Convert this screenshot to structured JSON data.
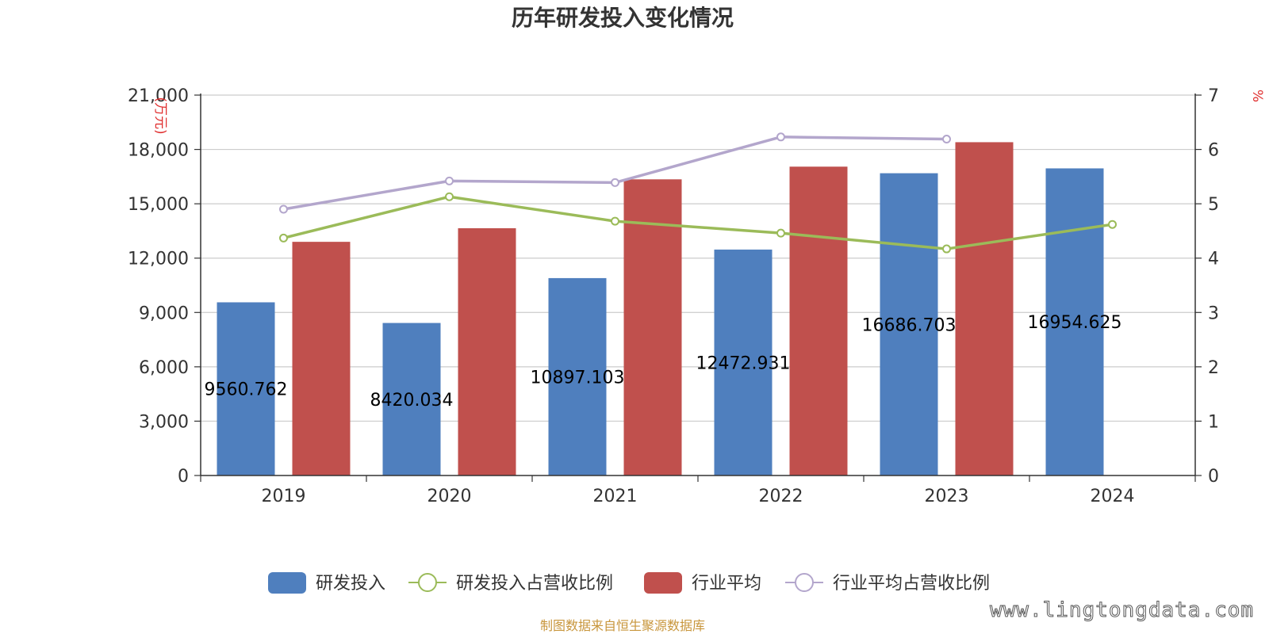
{
  "chart_data": {
    "type": "bar",
    "title": "历年研发投入变化情况",
    "categories": [
      "2019",
      "2020",
      "2021",
      "2022",
      "2023",
      "2024"
    ],
    "y_left": {
      "unit_label": "万元",
      "ylim": [
        0,
        21000
      ],
      "ticks": [
        0,
        3000,
        6000,
        9000,
        12000,
        15000,
        18000,
        21000
      ],
      "tick_labels": [
        "0",
        "3,000",
        "6,000",
        "9,000",
        "12,000",
        "15,000",
        "18,000",
        "21,000"
      ]
    },
    "y_right": {
      "unit_label": "%",
      "ylim": [
        0,
        7
      ],
      "ticks": [
        0,
        1,
        2,
        3,
        4,
        5,
        6,
        7
      ],
      "tick_labels": [
        "0",
        "1",
        "2",
        "3",
        "4",
        "5",
        "6",
        "7"
      ]
    },
    "grid": true,
    "legend_position": "bottom",
    "series": [
      {
        "name": "研发投入",
        "kind": "bar",
        "axis": "left",
        "color": "#4f7fbe",
        "values": [
          9560.762,
          8420.034,
          10897.103,
          12472.931,
          16686.703,
          16954.625
        ],
        "data_labels": [
          "9560.762",
          "8420.034",
          "10897.103",
          "12472.931",
          "16686.703",
          "16954.625"
        ]
      },
      {
        "name": "研发投入占营收比例",
        "kind": "line",
        "axis": "right",
        "color": "#9bbb59",
        "values": [
          4.37,
          5.13,
          4.68,
          4.46,
          4.17,
          4.62
        ]
      },
      {
        "name": "行业平均",
        "kind": "bar",
        "axis": "left",
        "color": "#c0504d",
        "values": [
          12900,
          13650,
          16350,
          17050,
          18400,
          null
        ]
      },
      {
        "name": "行业平均占营收比例",
        "kind": "line",
        "axis": "right",
        "color": "#b3a6cc",
        "values": [
          4.9,
          5.42,
          5.39,
          6.23,
          6.19,
          null
        ]
      }
    ]
  },
  "source_note": "制图数据来自恒生聚源数据库",
  "watermark": "www.lingtongdata.com"
}
